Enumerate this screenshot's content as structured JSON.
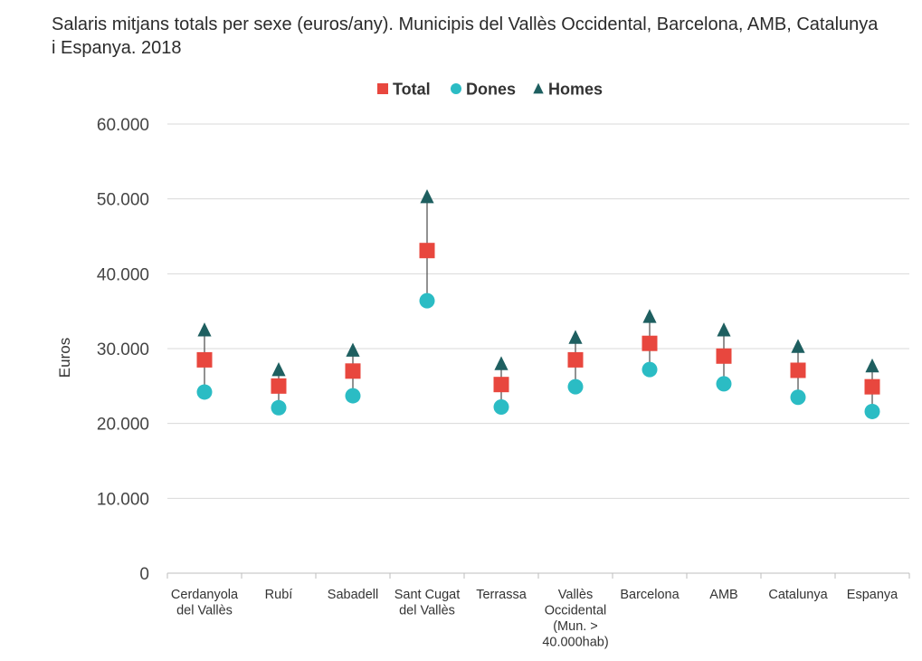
{
  "chart_data": {
    "type": "scatter",
    "title": "Salaris mitjans totals per sexe (euros/any). Municipis del Vallès Occidental, Barcelona, AMB, Catalunya i Espanya. 2018",
    "ylabel": "Euros",
    "xlabel": "",
    "ylim": [
      0,
      60000
    ],
    "yticks": [
      0,
      10000,
      20000,
      30000,
      40000,
      50000,
      60000
    ],
    "ytick_labels": [
      "0",
      "10.000",
      "20.000",
      "30.000",
      "40.000",
      "50.000",
      "60.000"
    ],
    "grid": true,
    "legend_position": "top",
    "categories": [
      [
        "Cerdanyola",
        "del Vallès"
      ],
      [
        "Rubí"
      ],
      [
        "Sabadell"
      ],
      [
        "Sant Cugat",
        "del Vallès"
      ],
      [
        "Terrassa"
      ],
      [
        "Vallès",
        "Occidental",
        "(Mun. >",
        "40.000hab)"
      ],
      [
        "Barcelona"
      ],
      [
        "AMB"
      ],
      [
        "Catalunya"
      ],
      [
        "Espanya"
      ]
    ],
    "series": [
      {
        "name": "Total",
        "marker": "square",
        "color": "#e8473e",
        "values": [
          28500,
          25000,
          27000,
          43100,
          25200,
          28500,
          30700,
          29000,
          27100,
          24900
        ]
      },
      {
        "name": "Dones",
        "marker": "circle",
        "color": "#2bbcc4",
        "values": [
          24200,
          22100,
          23700,
          36400,
          22200,
          24900,
          27200,
          25300,
          23500,
          21600
        ]
      },
      {
        "name": "Homes",
        "marker": "triangle",
        "color": "#1e5f60",
        "values": [
          32500,
          27200,
          29800,
          50300,
          28000,
          31500,
          34300,
          32500,
          30300,
          27700
        ]
      }
    ]
  }
}
